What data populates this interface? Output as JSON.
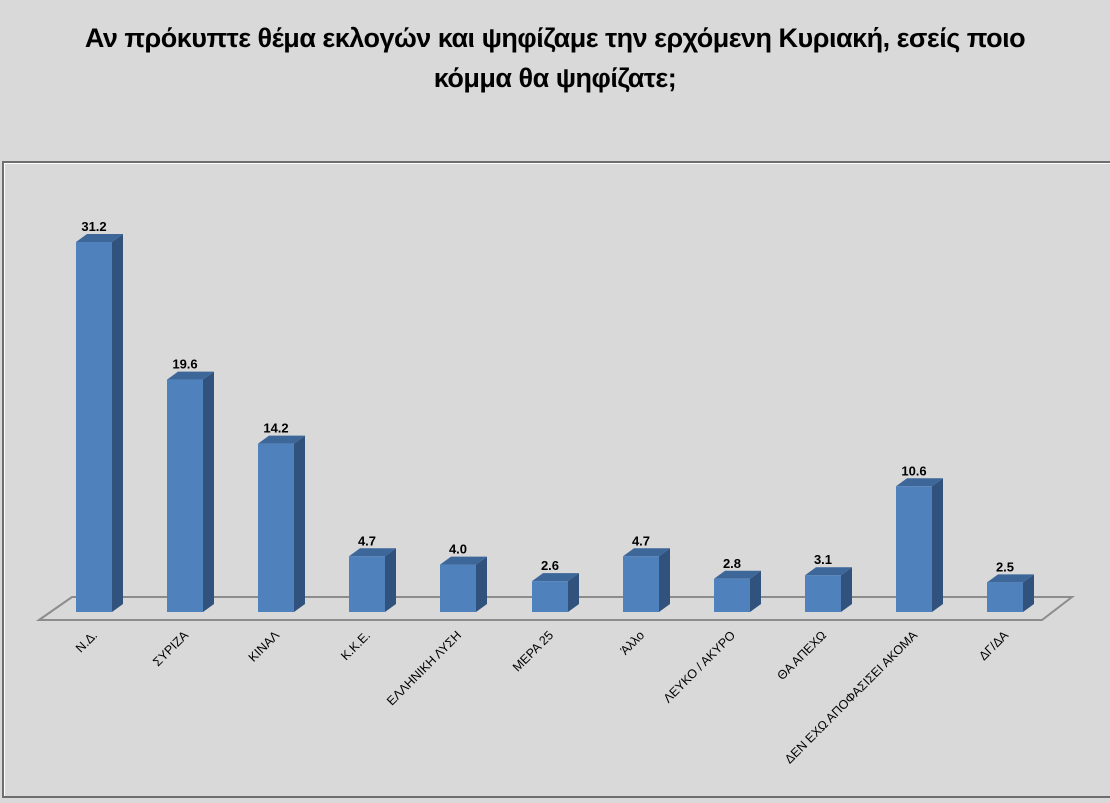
{
  "title_line1": "Αν πρόκυπτε θέμα εκλογών και ψηφίζαμε την ερχόμενη Κυριακή, εσείς ποιο",
  "title_line2": "κόμμα θα ψηφίζατε;",
  "colors": {
    "background": "#d9d9d9",
    "bar_front": "#4f81bd",
    "bar_side": "#30527d",
    "bar_top": "#3d6699",
    "floor_line": "#8c8c8c",
    "frame_border": "#6e6e6e"
  },
  "chart_data": {
    "type": "bar",
    "title": "Αν πρόκυπτε θέμα εκλογών και ψηφίζαμε την ερχόμενη Κυριακή, εσείς ποιο κόμμα θα ψηφίζατε;",
    "categories": [
      "Ν.Δ.",
      "ΣΥΡΙΖΑ",
      "ΚΙΝΑΛ",
      "Κ.Κ.Ε.",
      "ΕΛΛΗΝΙΚΗ ΛΥΣΗ",
      "ΜΕΡΑ 25",
      "Άλλο",
      "ΛΕΥΚΟ / ΑΚΥΡΟ",
      "ΘΑ ΑΠΕΧΩ",
      "ΔΕΝ ΕΧΩ ΑΠΟΦΑΣΙΣΕΙ ΑΚΟΜΑ",
      "ΔΓ/ΔΑ"
    ],
    "values": [
      31.2,
      19.6,
      14.2,
      4.7,
      4.0,
      2.6,
      4.7,
      2.8,
      3.1,
      10.6,
      2.5
    ],
    "value_labels": [
      "31.2",
      "19.6",
      "14.2",
      "4.7",
      "4.0",
      "2.6",
      "4.7",
      "2.8",
      "3.1",
      "10.6",
      "2.5"
    ],
    "xlabel": "",
    "ylabel": "",
    "ylim": [
      0,
      32
    ],
    "grid": false,
    "legend": "none",
    "style": "3d-column",
    "xtick_rotation": -45
  }
}
